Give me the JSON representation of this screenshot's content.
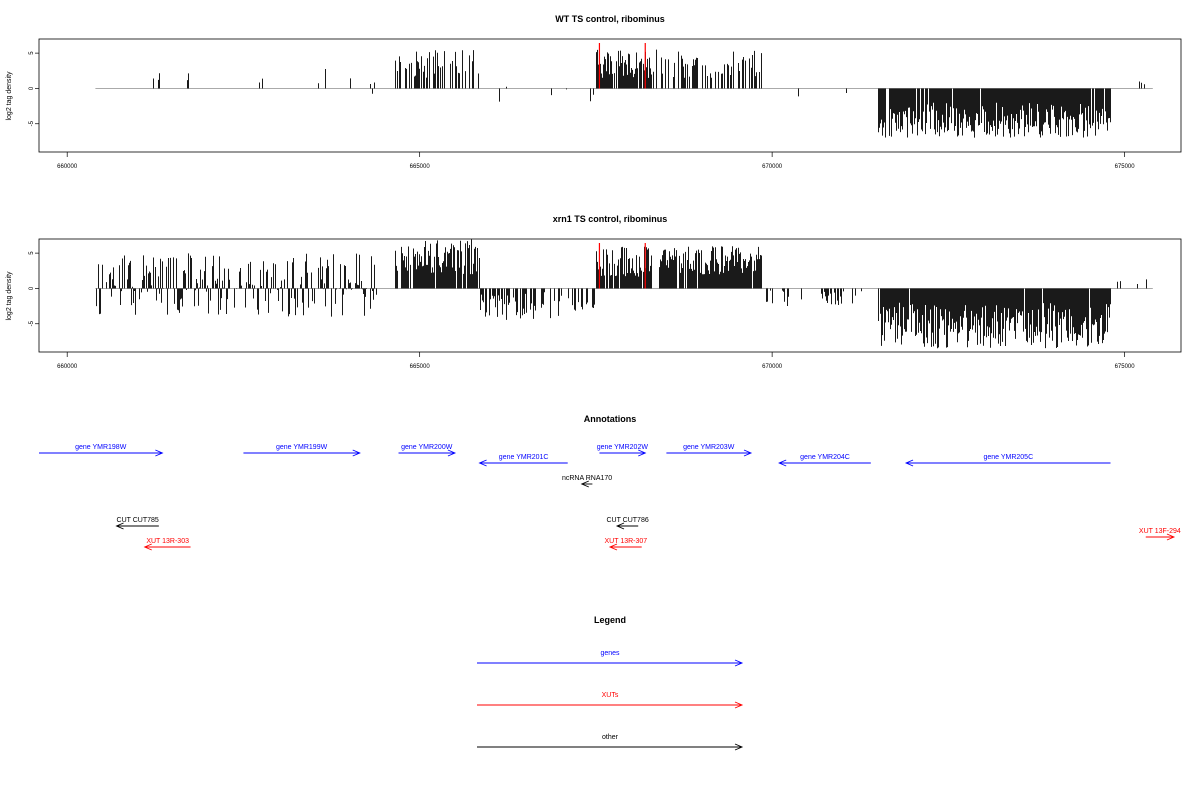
{
  "chart_data": [
    {
      "type": "bar",
      "title": "WT TS control, ribominus",
      "ylabel": "log2 tag density",
      "xlim": [
        659600,
        675800
      ],
      "ylim": [
        -9,
        7
      ],
      "xticks": [
        660000,
        665000,
        670000,
        675000
      ],
      "xtick_labels": [
        "660000",
        "665000",
        "670000",
        "675000"
      ],
      "yticks": [
        5,
        0,
        -5
      ],
      "ytick_labels": [
        "5",
        "0",
        "-5"
      ],
      "baseline_range": [
        660400,
        675400
      ],
      "highlight_x": [
        667550,
        668200
      ],
      "regions": [
        {
          "start": 660400,
          "end": 664400,
          "density": 0.04,
          "min": -1,
          "max": 3
        },
        {
          "start": 664650,
          "end": 665850,
          "density": 0.45,
          "min": 1.5,
          "max": 5.5
        },
        {
          "start": 665850,
          "end": 667500,
          "density": 0.06,
          "min": -2.5,
          "max": 1
        },
        {
          "start": 667500,
          "end": 668300,
          "density": 0.9,
          "min": 1.5,
          "max": 5.5
        },
        {
          "start": 668300,
          "end": 669850,
          "density": 0.5,
          "min": 1.5,
          "max": 5.5
        },
        {
          "start": 669850,
          "end": 671300,
          "density": 0.04,
          "min": -2.8,
          "max": -0.3
        },
        {
          "start": 671500,
          "end": 674800,
          "density": 0.95,
          "min": -7,
          "max": -2
        },
        {
          "start": 675200,
          "end": 675300,
          "density": 0.3,
          "min": 0.5,
          "max": 1
        }
      ]
    },
    {
      "type": "bar",
      "title": "xrn1 TS control, ribominus",
      "ylabel": "log2 tag density",
      "xlim": [
        659600,
        675800
      ],
      "ylim": [
        -9,
        7
      ],
      "xticks": [
        660000,
        665000,
        670000,
        675000
      ],
      "xtick_labels": [
        "660000",
        "665000",
        "670000",
        "675000"
      ],
      "yticks": [
        5,
        0,
        -5
      ],
      "ytick_labels": [
        "5",
        "0",
        "-5"
      ],
      "baseline_range": [
        660400,
        675400
      ],
      "highlight_x": [
        667550,
        668200
      ],
      "regions": [
        {
          "start": 660400,
          "end": 664400,
          "density": 0.7,
          "min": -4,
          "max": 5
        },
        {
          "start": 664650,
          "end": 665850,
          "density": 0.9,
          "min": 2,
          "max": 7
        },
        {
          "start": 665850,
          "end": 667500,
          "density": 0.5,
          "min": -4.5,
          "max": -0.5
        },
        {
          "start": 667500,
          "end": 668300,
          "density": 0.95,
          "min": 1.5,
          "max": 6
        },
        {
          "start": 668400,
          "end": 669850,
          "density": 0.95,
          "min": 2,
          "max": 6
        },
        {
          "start": 669850,
          "end": 671300,
          "density": 0.3,
          "min": -2.5,
          "max": -0.3
        },
        {
          "start": 671500,
          "end": 674800,
          "density": 0.98,
          "min": -8.5,
          "max": -2
        },
        {
          "start": 674800,
          "end": 675400,
          "density": 0.05,
          "min": 0.5,
          "max": 2.5
        }
      ]
    }
  ],
  "annotations": {
    "title": "Annotations",
    "items": [
      {
        "label": "gene YMR198W",
        "color": "#0000ff",
        "x1": 659600,
        "x2": 661350,
        "row": 0,
        "dir": "right"
      },
      {
        "label": "gene YMR199W",
        "color": "#0000ff",
        "x1": 662500,
        "x2": 664150,
        "row": 0,
        "dir": "right"
      },
      {
        "label": "gene YMR200W",
        "color": "#0000ff",
        "x1": 664700,
        "x2": 665500,
        "row": 0,
        "dir": "right"
      },
      {
        "label": "gene YMR201C",
        "color": "#0000ff",
        "x1": 665850,
        "x2": 667100,
        "row": 1,
        "dir": "left"
      },
      {
        "label": "gene YMR202W",
        "color": "#0000ff",
        "x1": 667550,
        "x2": 668200,
        "row": 0,
        "dir": "right"
      },
      {
        "label": "gene YMR203W",
        "color": "#0000ff",
        "x1": 668500,
        "x2": 669700,
        "row": 0,
        "dir": "right"
      },
      {
        "label": "gene YMR204C",
        "color": "#0000ff",
        "x1": 670100,
        "x2": 671400,
        "row": 1,
        "dir": "left"
      },
      {
        "label": "gene YMR205C",
        "color": "#0000ff",
        "x1": 671900,
        "x2": 674800,
        "row": 1,
        "dir": "left"
      },
      {
        "label": "ncRNA RNA170",
        "color": "#000000",
        "x1": 667300,
        "x2": 667450,
        "row": 2,
        "dir": "left"
      },
      {
        "label": "CUT CUT785",
        "color": "#000000",
        "x1": 660700,
        "x2": 661300,
        "row": 3,
        "dir": "left"
      },
      {
        "label": "CUT CUT786",
        "color": "#000000",
        "x1": 667800,
        "x2": 668100,
        "row": 3,
        "dir": "left"
      },
      {
        "label": "XUT 13R-303",
        "color": "#ff0000",
        "x1": 661100,
        "x2": 661750,
        "row": 4,
        "dir": "left"
      },
      {
        "label": "XUT 13R-307",
        "color": "#ff0000",
        "x1": 667700,
        "x2": 668150,
        "row": 4,
        "dir": "left"
      },
      {
        "label": "XUT 13F-294",
        "color": "#ff0000",
        "x1": 675300,
        "x2": 675700,
        "row": 5,
        "dir": "right"
      }
    ]
  },
  "legend": {
    "title": "Legend",
    "items": [
      {
        "label": "genes",
        "color": "#0000ff"
      },
      {
        "label": "XUTs",
        "color": "#ff0000"
      },
      {
        "label": "other",
        "color": "#000000"
      }
    ]
  }
}
